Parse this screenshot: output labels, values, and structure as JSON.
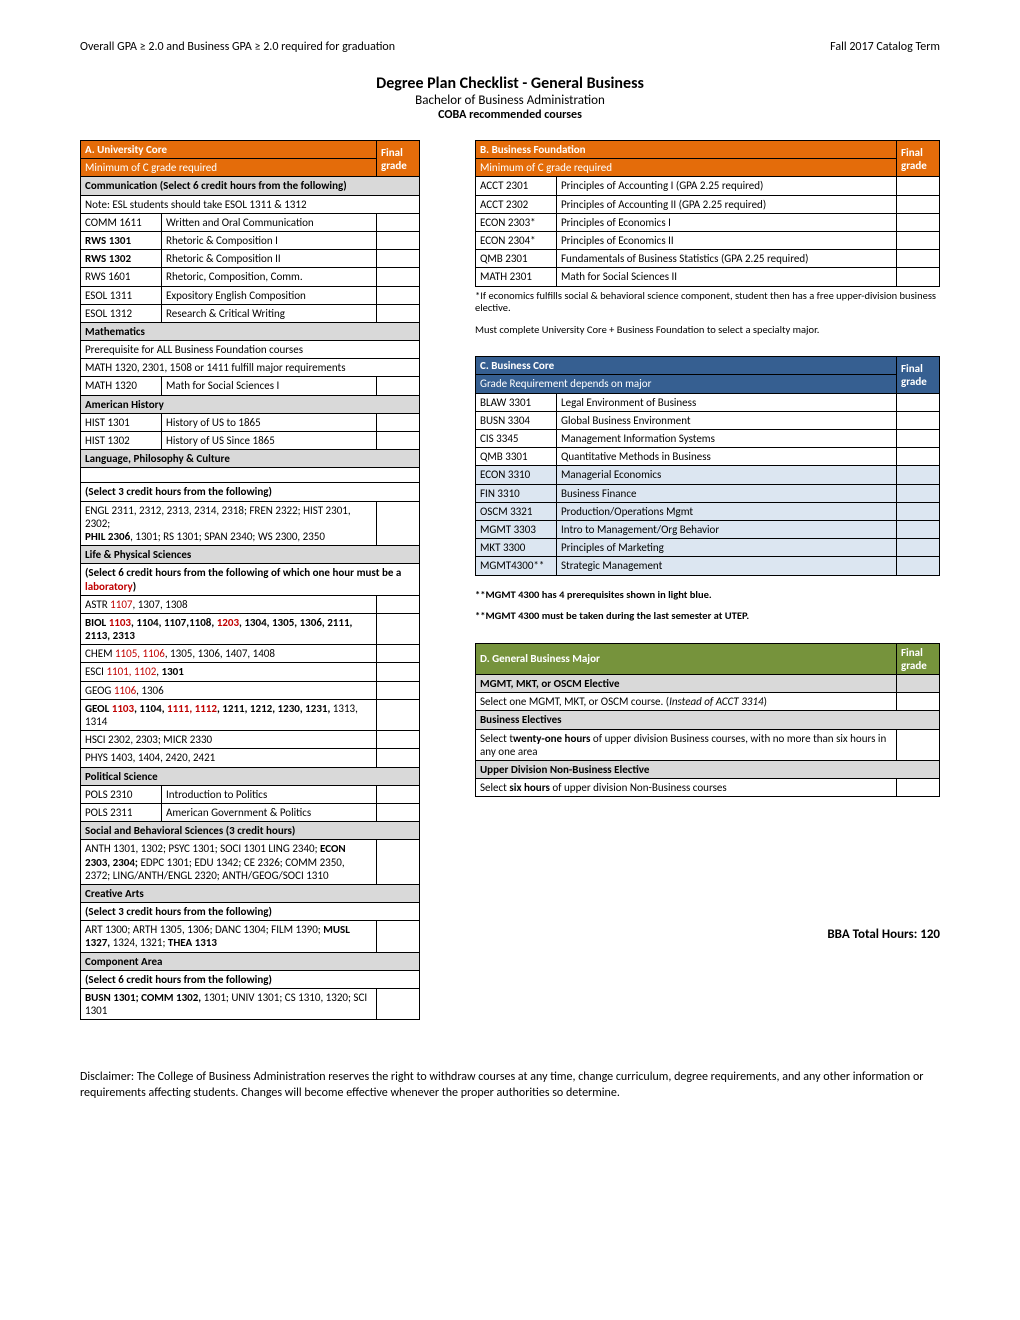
{
  "top": {
    "gpa_req": "Overall GPA ≥ 2.0 and Business GPA ≥ 2.0 required for graduation",
    "term": "Fall 2017 Catalog Term"
  },
  "titles": {
    "main": "Degree Plan Checklist - General Business",
    "sub": "Bachelor of Business Administration",
    "subsub": "COBA recommended courses"
  },
  "sectionA": {
    "header": "A. University Core",
    "grade_label": "Final grade",
    "subheader": "Minimum of C grade required",
    "comm_header": "Communication (Select 6 credit hours from the following)",
    "comm_note": "Note: ESL students should take ESOL 1311 & 1312",
    "comm_rows": [
      {
        "code": "COMM 1611",
        "name": "Written and Oral Communication"
      },
      {
        "code": "RWS 1301",
        "name": "Rhetoric & Composition I",
        "bold": true
      },
      {
        "code": "RWS 1302",
        "name": "Rhetoric & Composition II",
        "bold": true
      },
      {
        "code": "RWS 1601",
        "name": "Rhetoric, Composition, Comm."
      },
      {
        "code": "ESOL 1311",
        "name": "Expository English Composition"
      },
      {
        "code": "ESOL 1312",
        "name": "Research & Critical Writing"
      }
    ],
    "math_header": "Mathematics",
    "math_note1": "Prerequisite for ALL Business Foundation courses",
    "math_note2": "MATH 1320, 2301, 1508 or 1411 fulfill major requirements",
    "math_row": {
      "code": "MATH 1320",
      "name": "Math for Social Sciences I"
    },
    "amhist_header": "American History",
    "amhist_rows": [
      {
        "code": "HIST 1301",
        "name": "History of US to 1865"
      },
      {
        "code": "HIST 1302",
        "name": "History of US Since 1865"
      }
    ],
    "lang_header": "Language, Philosophy & Culture",
    "lang_select": "(Select 3 credit hours from the following)",
    "lang_line1_a": "ENGL 2311, 2312, 2313, 2314, 2318; FREN 2322; HIST 2301, 2302;",
    "lang_line2_a": "PHIL 2306",
    "lang_line2_b": ", 1301; RS 1301; SPAN 2340; WS 2300, 2350",
    "life_header": "Life & Physical Sciences",
    "life_select_a": "(Select 6 credit hours from the following of which one hour must be a ",
    "life_select_b": "laboratory",
    "life_select_c": ")",
    "life_rows_html": [
      "ASTR <span class='red'>1107</span>, 1307, 1308",
      "<span class='bold'>BIOL <span class='red'>1103</span>, 1104, 1107,1108, <span class='red'>1203</span>, 1304, 1305, 1306, 2111, 2113, 2313</span>",
      "CHEM <span class='red'>1105, 1106</span>, 1305, 1306, 1407, 1408",
      "ESCI <span class='red'>1101, 1102</span>, <span class='bold'>1301</span>",
      "GEOG <span class='red'>1106</span>, 1306",
      "<span class='bold'>GEOL <span class='red'>1103</span>, 1104, <span class='red'>1111, 1112</span>, 1211, 1212, 1230, 1231,</span> 1313, 1314",
      "HSCI 2302, 2303; MICR 2330",
      "PHYS 1403, 1404, 2420, 2421"
    ],
    "pols_header": "Political Science",
    "pols_rows": [
      {
        "code": "POLS 2310",
        "name": "Introduction to Politics"
      },
      {
        "code": "POLS 2311",
        "name": "American Government & Politics"
      }
    ],
    "social_header": "Social and Behavioral Sciences (3 credit hours)",
    "social_html": "ANTH 1301, 1302; PSYC 1301; SOCI 1301 LING 2340; <span class='bold'>ECON 2303, 2304;</span> EDPC 1301; EDU 1342; CE 2326; COMM 2350, 2372; LING/ANTH/ENGL 2320; ANTH/GEOG/SOCI 1310",
    "creative_header": "Creative Arts",
    "creative_select": "(Select 3 credit hours from the following)",
    "creative_html": "ART 1300; ARTH 1305, 1306; DANC 1304; FILM 1390; <span class='bold'>MUSL 1327,</span> 1324, 1321; <span class='bold'>THEA 1313</span>",
    "comp_header": "Component Area",
    "comp_select": "(Select 6 credit hours from the following)",
    "comp_html": "<span class='bold'>BUSN 1301; COMM 1302,</span> 1301; UNIV 1301; CS 1310, 1320; SCI 1301"
  },
  "sectionB": {
    "header": "B. Business Foundation",
    "grade_label": "Final grade",
    "subheader": "Minimum of C grade required",
    "rows": [
      {
        "code": "ACCT 2301",
        "name": "Principles of Accounting I  (GPA 2.25 required)"
      },
      {
        "code": "ACCT 2302",
        "name": "Principles of Accounting II (GPA 2.25 required)"
      },
      {
        "code": "ECON 2303*",
        "name": "Principles of Economics I"
      },
      {
        "code": "ECON 2304*",
        "name": "Principles of Economics II"
      },
      {
        "code": "QMB 2301",
        "name": "Fundamentals of Business Statistics           (GPA 2.25 required)"
      },
      {
        "code": "MATH 2301",
        "name": "Math for Social Sciences II"
      }
    ],
    "note1": "*If economics fulfills social & behavioral science component, student then has a free upper-division business elective.",
    "note2": "Must complete University Core + Business Foundation to select a specialty major."
  },
  "sectionC": {
    "header": "C. Business Core",
    "grade_label": "Final grade",
    "subheader": "Grade Requirement depends on major",
    "rows": [
      {
        "code": "BLAW 3301",
        "name": "Legal Environment of Business"
      },
      {
        "code": "BUSN 3304",
        "name": "Global Business Environment"
      },
      {
        "code": "CIS 3345",
        "name": "Management Information Systems"
      },
      {
        "code": "QMB 3301",
        "name": "Quantitative Methods in Business"
      },
      {
        "code": "ECON 3310",
        "name": "Managerial Economics",
        "lb": true
      },
      {
        "code": "FIN 3310",
        "name": "Business Finance",
        "lb": true
      },
      {
        "code": "OSCM 3321",
        "name": "Production/Operations Mgmt",
        "lb": true
      },
      {
        "code": "MGMT 3303",
        "name": "Intro to Management/Org Behavior",
        "lb": true
      },
      {
        "code": "MKT 3300",
        "name": "Principles of Marketing",
        "lb": true
      },
      {
        "code": "MGMT4300**",
        "name": "Strategic Management",
        "lb": true
      }
    ],
    "note1": "**MGMT 4300 has 4 prerequisites shown in light blue.",
    "note2": "**MGMT 4300 must be taken during the last semester at UTEP."
  },
  "sectionD": {
    "header": "D. General Business Major",
    "grade_label": "Final grade",
    "row1": "MGMT, MKT, or OSCM Elective",
    "row1_sub_a": "Select one MGMT, MKT, or OSCM course. (",
    "row1_sub_b": "Instead of ACCT 3314",
    "row1_sub_c": ")",
    "row2": "Business Electives",
    "row2_sub_a": "Select t",
    "row2_sub_b": "wenty-one hours",
    "row2_sub_c": " of upper division Business courses, with no more than six hours in any one area",
    "row3": "Upper Division Non-Business Elective",
    "row3_sub_a": "Select ",
    "row3_sub_b": "six hours",
    "row3_sub_c": " of upper division Non-Business courses"
  },
  "total_hours_label": "BBA Total Hours:  120",
  "disclaimer": "Disclaimer: The College of Business Administration reserves the right to withdraw courses at any time, change curriculum, degree requirements, and any other information or requirements affecting students. Changes will become effective whenever the proper authorities so determine."
}
